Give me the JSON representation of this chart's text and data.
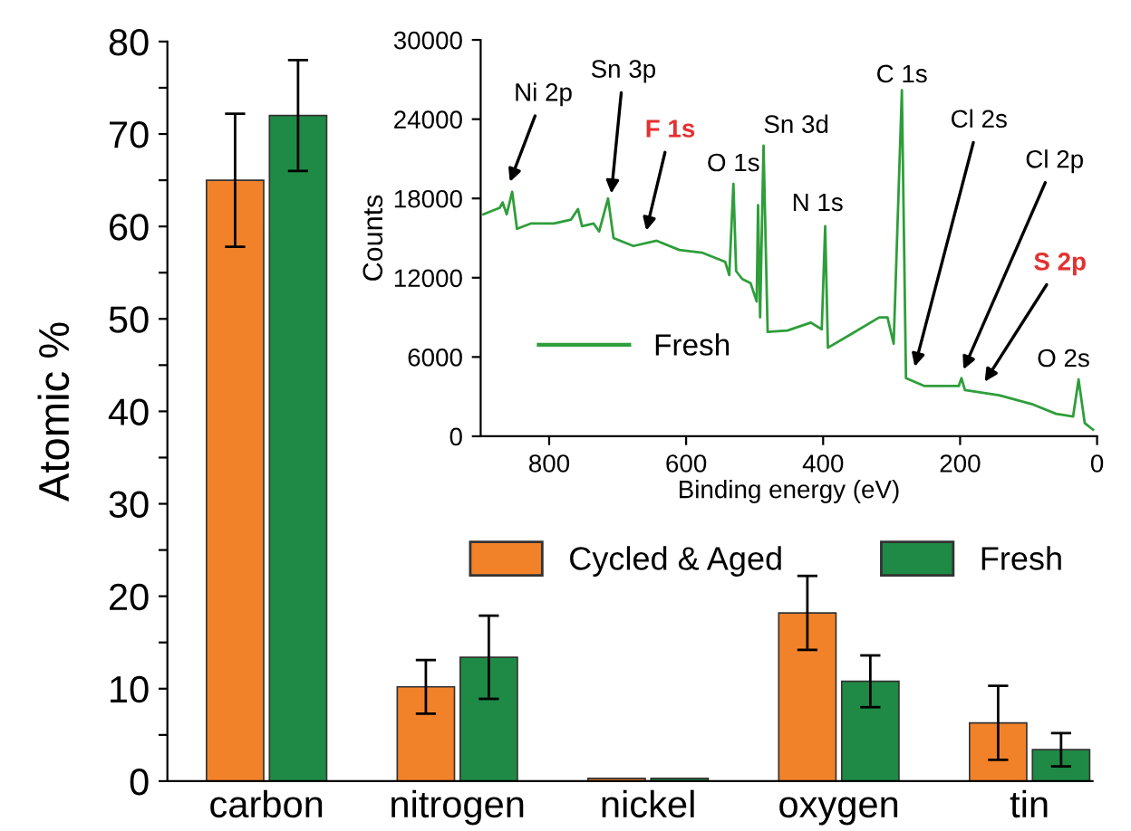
{
  "chart_data": [
    {
      "type": "bar",
      "ylabel": "Atomic %",
      "categories": [
        "carbon",
        "nitrogen",
        "nickel",
        "oxygen",
        "tin"
      ],
      "series": [
        {
          "name": "Cycled & Aged",
          "color": "#f28229",
          "values": [
            65,
            10.2,
            0.3,
            18.2,
            6.3
          ],
          "errors": [
            7.2,
            2.9,
            null,
            4.0,
            4.0
          ]
        },
        {
          "name": "Fresh",
          "color": "#1f8a45",
          "values": [
            72,
            13.4,
            0.3,
            10.8,
            3.4
          ],
          "errors": [
            6.0,
            4.5,
            null,
            2.8,
            1.8
          ]
        }
      ],
      "ylim": [
        0,
        80
      ],
      "yticks": [
        0,
        {
          "value": 5,
          "label": null
        },
        10,
        {
          "value": 15,
          "label": null
        },
        20,
        {
          "value": 25,
          "label": null
        },
        30,
        {
          "value": 35,
          "label": null
        },
        40,
        {
          "value": 45,
          "label": null
        },
        50,
        {
          "value": 55,
          "label": null
        },
        60,
        {
          "value": 65,
          "label": null
        },
        70,
        {
          "value": 75,
          "label": null
        },
        80
      ],
      "grid": false,
      "legend": "center right"
    },
    {
      "type": "line",
      "xlabel": "Binding energy (eV)",
      "ylabel": "Counts",
      "xlim": [
        900,
        0
      ],
      "xticks": [
        800,
        600,
        400,
        200,
        0
      ],
      "ylim": [
        0,
        30000
      ],
      "yticks": [
        0,
        6000,
        12000,
        18000,
        24000,
        30000
      ],
      "series": [
        {
          "name": "Fresh",
          "color": "#2e9e3a",
          "x": [
            896,
            872,
            868,
            862,
            854,
            847,
            827,
            793,
            768,
            758,
            752,
            735,
            727,
            714,
            706,
            677,
            643,
            610,
            577,
            543,
            537,
            531,
            527,
            518,
            506,
            497,
            495,
            492,
            487,
            481,
            452,
            418,
            402,
            397,
            393,
            360,
            318,
            306,
            297,
            285,
            279,
            252,
            202,
            198,
            193,
            143,
            93,
            60,
            35,
            27,
            18,
            6
          ],
          "values": [
            16800,
            17300,
            17700,
            16800,
            18500,
            15700,
            16100,
            16100,
            16400,
            17200,
            15900,
            16100,
            15500,
            18000,
            15000,
            14400,
            14800,
            14100,
            13900,
            13200,
            12200,
            19100,
            12500,
            11900,
            11600,
            10200,
            17500,
            9000,
            22000,
            7900,
            8000,
            8600,
            8100,
            15900,
            6700,
            7700,
            9000,
            9000,
            7000,
            26200,
            4400,
            3800,
            3800,
            4400,
            3500,
            3100,
            2400,
            1700,
            1500,
            4300,
            1000,
            500
          ]
        }
      ],
      "annotations": [
        {
          "text": "Ni 2p",
          "x": 860,
          "y": 18900
        },
        {
          "text": "Sn 3p",
          "x": 710,
          "y": 18000
        },
        {
          "text": "F 1s",
          "x": 660,
          "y": 15200
        },
        {
          "text": "O 1s",
          "x": 531,
          "y": 19100
        },
        {
          "text": "Sn 3d",
          "x": 487,
          "y": 22000
        },
        {
          "text": "N 1s",
          "x": 397,
          "y": 15900
        },
        {
          "text": "C 1s",
          "x": 285,
          "y": 26200
        },
        {
          "text": "Cl 2s",
          "x": 268,
          "y": 4900
        },
        {
          "text": "Cl 2p",
          "x": 198,
          "y": 4700
        },
        {
          "text": "S 2p",
          "x": 168,
          "y": 3800
        },
        {
          "text": "O 2s",
          "x": 27,
          "y": 4300
        }
      ],
      "grid": false,
      "legend": "bottom left",
      "marker": "none",
      "line_style": "solid"
    }
  ]
}
